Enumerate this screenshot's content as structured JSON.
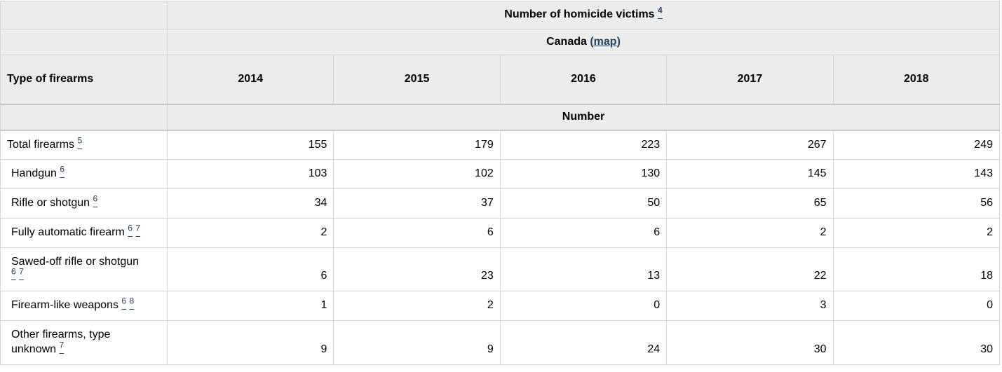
{
  "chart_data": {
    "type": "table",
    "title": "Number of homicide victims",
    "title_footnote": "4",
    "region": "Canada",
    "map_label": "map",
    "row_dimension": "Type of firearms",
    "unit_label": "Number",
    "columns": [
      "2014",
      "2015",
      "2016",
      "2017",
      "2018"
    ],
    "rows": [
      {
        "label": "Total firearms",
        "footnotes": [
          "5"
        ],
        "indent": false,
        "values": [
          155,
          179,
          223,
          267,
          249
        ]
      },
      {
        "label": "Handgun",
        "footnotes": [
          "6"
        ],
        "indent": true,
        "values": [
          103,
          102,
          130,
          145,
          143
        ]
      },
      {
        "label": "Rifle or shotgun",
        "footnotes": [
          "6"
        ],
        "indent": true,
        "values": [
          34,
          37,
          50,
          65,
          56
        ]
      },
      {
        "label": "Fully automatic firearm",
        "footnotes": [
          "6",
          "7"
        ],
        "indent": true,
        "values": [
          2,
          6,
          6,
          2,
          2
        ]
      },
      {
        "label": "Sawed-off rifle or shotgun",
        "footnotes": [
          "6",
          "7"
        ],
        "indent": true,
        "values": [
          6,
          23,
          13,
          22,
          18
        ]
      },
      {
        "label": "Firearm-like weapons",
        "footnotes": [
          "6",
          "8"
        ],
        "indent": true,
        "values": [
          1,
          2,
          0,
          3,
          0
        ]
      },
      {
        "label": "Other firearms, type unknown",
        "footnotes": [
          "7"
        ],
        "indent": true,
        "values": [
          9,
          9,
          24,
          30,
          30
        ]
      }
    ],
    "layout": {
      "header_background": "#ececec",
      "border_color": "#d4d4d4",
      "link_color": "#284162"
    }
  }
}
